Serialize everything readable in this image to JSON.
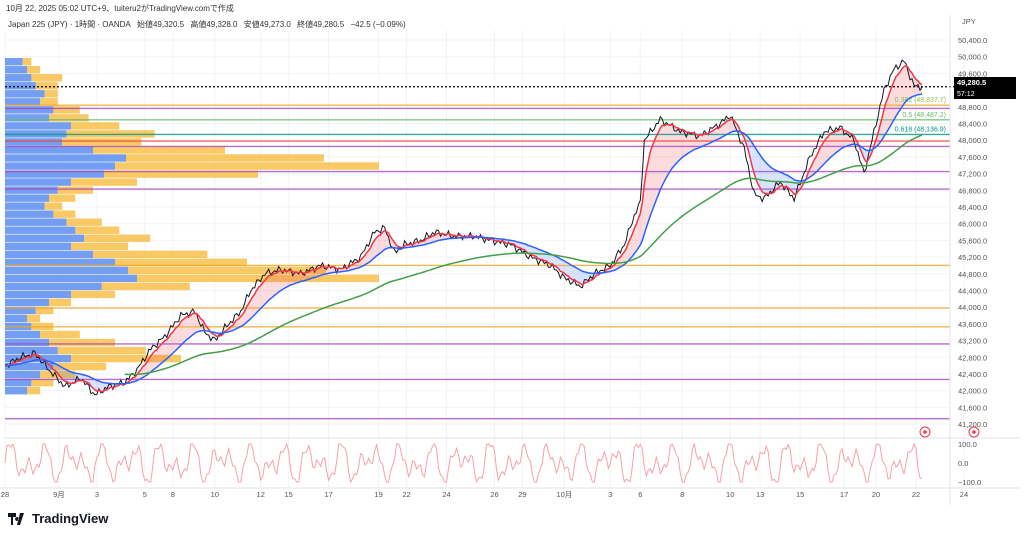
{
  "caption": "10月 22, 2025 05:02 UTC+9、tuiteru2がTradingView.comで作成",
  "legend": {
    "symbol": "Japan 225 (JPY) · 1時間 · OANDA",
    "open": "始値49,320.5",
    "high": "高値49,328.0",
    "low": "安値49,273.0",
    "close": "終値49,280.5",
    "change": "−42.5 (−0.09%)"
  },
  "currency": "JPY",
  "last_price": "49,280.5",
  "countdown": "57:12",
  "brand": "TradingView",
  "chart_data": {
    "type": "line",
    "title": "Japan 225 (JPY) 1時間",
    "ylim": [
      41000,
      50600
    ],
    "y_ticks": [
      "50,400.0",
      "50,000.0",
      "49,600.0",
      "48,800.0",
      "48,400.0",
      "48,000.0",
      "47,600.0",
      "47,200.0",
      "46,800.0",
      "46,400.0",
      "46,000.0",
      "45,600.0",
      "45,200.0",
      "44,800.0",
      "44,400.0",
      "44,000.0",
      "43,600.0",
      "43,200.0",
      "42,800.0",
      "42,400.0",
      "42,000.0",
      "41,600.0",
      "41,200.0"
    ],
    "x_ticks": [
      [
        "28",
        0
      ],
      [
        "9月",
        27
      ],
      [
        "3",
        46
      ],
      [
        "5",
        70
      ],
      [
        "8",
        84
      ],
      [
        "10",
        105
      ],
      [
        "12",
        128
      ],
      [
        "15",
        142
      ],
      [
        "17",
        162
      ],
      [
        "19",
        187
      ],
      [
        "22",
        201
      ],
      [
        "24",
        221
      ],
      [
        "26",
        245
      ],
      [
        "29",
        259
      ],
      [
        "10月",
        280
      ],
      [
        "3",
        303
      ],
      [
        "6",
        318
      ],
      [
        "8",
        339
      ],
      [
        "10",
        363
      ],
      [
        "13",
        378
      ],
      [
        "15",
        398
      ],
      [
        "17",
        420
      ],
      [
        "20",
        436
      ],
      [
        "22",
        456
      ],
      [
        "24",
        480
      ]
    ],
    "price_path": [
      [
        0,
        42600
      ],
      [
        8,
        42800
      ],
      [
        15,
        42900
      ],
      [
        22,
        42500
      ],
      [
        30,
        42100
      ],
      [
        38,
        42300
      ],
      [
        45,
        41900
      ],
      [
        52,
        42100
      ],
      [
        60,
        42200
      ],
      [
        66,
        42500
      ],
      [
        73,
        43000
      ],
      [
        80,
        43300
      ],
      [
        88,
        43800
      ],
      [
        95,
        43900
      ],
      [
        100,
        43400
      ],
      [
        105,
        43200
      ],
      [
        110,
        43500
      ],
      [
        118,
        43900
      ],
      [
        123,
        44400
      ],
      [
        130,
        44800
      ],
      [
        138,
        44900
      ],
      [
        148,
        44800
      ],
      [
        158,
        45000
      ],
      [
        168,
        44900
      ],
      [
        178,
        45200
      ],
      [
        185,
        45800
      ],
      [
        190,
        45900
      ],
      [
        195,
        45300
      ],
      [
        200,
        45500
      ],
      [
        208,
        45600
      ],
      [
        215,
        45800
      ],
      [
        225,
        45700
      ],
      [
        235,
        45700
      ],
      [
        243,
        45600
      ],
      [
        253,
        45500
      ],
      [
        263,
        45200
      ],
      [
        273,
        45000
      ],
      [
        280,
        44700
      ],
      [
        288,
        44500
      ],
      [
        295,
        44800
      ],
      [
        303,
        45000
      ],
      [
        310,
        45500
      ],
      [
        315,
        46200
      ],
      [
        318,
        46500
      ],
      [
        320,
        48000
      ],
      [
        328,
        48500
      ],
      [
        338,
        48200
      ],
      [
        348,
        48100
      ],
      [
        358,
        48400
      ],
      [
        363,
        48600
      ],
      [
        370,
        47800
      ],
      [
        375,
        46700
      ],
      [
        380,
        46600
      ],
      [
        388,
        47000
      ],
      [
        395,
        46600
      ],
      [
        403,
        47600
      ],
      [
        410,
        48200
      ],
      [
        418,
        48300
      ],
      [
        425,
        48000
      ],
      [
        430,
        47200
      ],
      [
        435,
        48200
      ],
      [
        440,
        49200
      ],
      [
        445,
        49700
      ],
      [
        450,
        49900
      ],
      [
        455,
        49300
      ],
      [
        459,
        49280
      ]
    ],
    "x_range": [
      0,
      490
    ],
    "horizontal_levels": [
      {
        "price": 48837.7,
        "color": "#f5a623",
        "label": "0.382 (48,837.7)",
        "label_color": "#8bc34a"
      },
      {
        "price": 48760,
        "color": "#ab47bc"
      },
      {
        "price": 48487.2,
        "color": "#66bb6a",
        "label": "0.5 (48,487.2)",
        "label_color": "#66bb6a"
      },
      {
        "price": 48136.9,
        "color": "#009688",
        "label": "0.618 (48,136.9)",
        "label_color": "#009688"
      },
      {
        "price": 47980,
        "color": "#f44336"
      },
      {
        "price": 47850,
        "color": "#ab47bc"
      },
      {
        "price": 47250,
        "color": "#ab47bc"
      },
      {
        "price": 46830,
        "color": "#ab47bc"
      },
      {
        "price": 45000,
        "color": "#f5a623"
      },
      {
        "price": 43980,
        "color": "#f5a623"
      },
      {
        "price": 43530,
        "color": "#f5a623"
      },
      {
        "price": 43120,
        "color": "#ab47bc"
      },
      {
        "price": 42270,
        "color": "#ab47bc"
      },
      {
        "price": 41330,
        "color": "#ab47bc"
      }
    ],
    "ma_series": [
      {
        "name": "fast",
        "color": "#f23645",
        "period": 6
      },
      {
        "name": "mid",
        "color": "#2962ff",
        "period": 30
      },
      {
        "name": "slow",
        "color": "#43a047",
        "period": 110
      }
    ],
    "volume_profile": [
      [
        8,
        4
      ],
      [
        10,
        6
      ],
      [
        12,
        14
      ],
      [
        14,
        10
      ],
      [
        18,
        6
      ],
      [
        16,
        8
      ],
      [
        22,
        12
      ],
      [
        20,
        18
      ],
      [
        30,
        22
      ],
      [
        28,
        40
      ],
      [
        26,
        36
      ],
      [
        40,
        60
      ],
      [
        55,
        90
      ],
      [
        50,
        120
      ],
      [
        45,
        70
      ],
      [
        30,
        30
      ],
      [
        24,
        16
      ],
      [
        20,
        12
      ],
      [
        18,
        8
      ],
      [
        22,
        10
      ],
      [
        28,
        16
      ],
      [
        32,
        20
      ],
      [
        36,
        30
      ],
      [
        30,
        26
      ],
      [
        40,
        52
      ],
      [
        50,
        60
      ],
      [
        56,
        90
      ],
      [
        60,
        110
      ],
      [
        44,
        40
      ],
      [
        30,
        20
      ],
      [
        20,
        10
      ],
      [
        14,
        8
      ],
      [
        10,
        6
      ],
      [
        12,
        10
      ],
      [
        16,
        18
      ],
      [
        20,
        30
      ],
      [
        24,
        40
      ],
      [
        30,
        50
      ],
      [
        22,
        24
      ],
      [
        16,
        16
      ],
      [
        12,
        10
      ],
      [
        10,
        6
      ]
    ],
    "oscillator": {
      "ticks": [
        "100.0",
        "0.0",
        "−100.0"
      ],
      "ylim": [
        -130,
        130
      ]
    }
  }
}
